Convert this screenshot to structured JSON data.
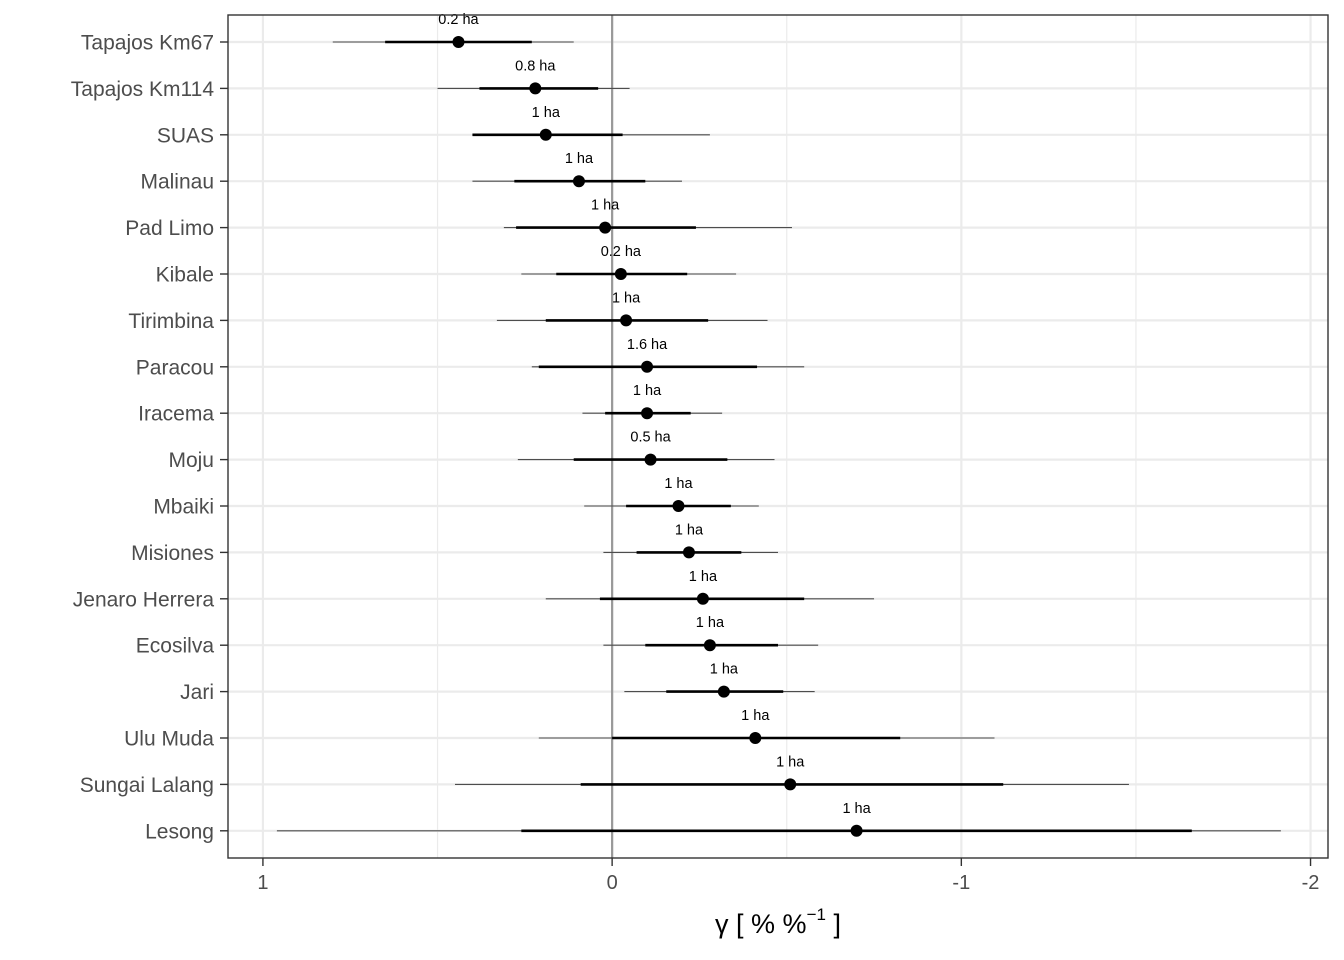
{
  "chart_data": {
    "type": "scatter",
    "subtype": "forest-plot",
    "xlabel": {
      "main": "γ [ % %",
      "sup": "−1",
      "close": " ]"
    },
    "ylabel": "",
    "xlim": [
      1.1,
      -2.05
    ],
    "x_reversed": true,
    "x_ticks": [
      1,
      0,
      -1,
      -2
    ],
    "x_tick_labels": [
      "1",
      "0",
      "-1",
      "-2"
    ],
    "reference_line": 0,
    "grid": true,
    "colors": {
      "grid": "#ebebeb",
      "point": "#000000",
      "ref_line": "#999999",
      "panel_border": "#333333",
      "thin_interval": "#4d4d4d"
    },
    "sites": [
      {
        "name": "Tapajos Km67",
        "estimate": 0.44,
        "inner": [
          0.65,
          0.23
        ],
        "outer": [
          0.8,
          0.11
        ],
        "annotation": "0.2 ha"
      },
      {
        "name": "Tapajos Km114",
        "estimate": 0.22,
        "inner": [
          0.38,
          0.04
        ],
        "outer": [
          0.5,
          -0.05
        ],
        "annotation": "0.8 ha"
      },
      {
        "name": "SUAS",
        "estimate": 0.19,
        "inner": [
          0.4,
          -0.03
        ],
        "outer": [
          0.4,
          -0.28
        ],
        "annotation": "1 ha"
      },
      {
        "name": "Malinau",
        "estimate": 0.095,
        "inner": [
          0.28,
          -0.095
        ],
        "outer": [
          0.4,
          -0.2
        ],
        "annotation": "1 ha"
      },
      {
        "name": "Pad Limo",
        "estimate": 0.02,
        "inner": [
          0.275,
          -0.24
        ],
        "outer": [
          0.31,
          -0.515
        ],
        "annotation": "1 ha"
      },
      {
        "name": "Kibale",
        "estimate": -0.025,
        "inner": [
          0.16,
          -0.215
        ],
        "outer": [
          0.26,
          -0.355
        ],
        "annotation": "0.2 ha"
      },
      {
        "name": "Tirimbina",
        "estimate": -0.04,
        "inner": [
          0.19,
          -0.275
        ],
        "outer": [
          0.33,
          -0.445
        ],
        "annotation": "1 ha"
      },
      {
        "name": "Paracou",
        "estimate": -0.1,
        "inner": [
          0.21,
          -0.415
        ],
        "outer": [
          0.23,
          -0.55
        ],
        "annotation": "1.6 ha"
      },
      {
        "name": "Iracema",
        "estimate": -0.1,
        "inner": [
          0.02,
          -0.225
        ],
        "outer": [
          0.085,
          -0.315
        ],
        "annotation": "1 ha"
      },
      {
        "name": "Moju",
        "estimate": -0.11,
        "inner": [
          0.11,
          -0.33
        ],
        "outer": [
          0.27,
          -0.465
        ],
        "annotation": "0.5 ha"
      },
      {
        "name": "Mbaiki",
        "estimate": -0.19,
        "inner": [
          -0.04,
          -0.34
        ],
        "outer": [
          0.08,
          -0.42
        ],
        "annotation": "1 ha"
      },
      {
        "name": "Misiones",
        "estimate": -0.22,
        "inner": [
          -0.07,
          -0.37
        ],
        "outer": [
          0.025,
          -0.475
        ],
        "annotation": "1 ha"
      },
      {
        "name": "Jenaro Herrera",
        "estimate": -0.26,
        "inner": [
          0.035,
          -0.55
        ],
        "outer": [
          0.19,
          -0.75
        ],
        "annotation": "1 ha"
      },
      {
        "name": "Ecosilva",
        "estimate": -0.28,
        "inner": [
          -0.095,
          -0.475
        ],
        "outer": [
          0.025,
          -0.59
        ],
        "annotation": "1 ha"
      },
      {
        "name": "Jari",
        "estimate": -0.32,
        "inner": [
          -0.155,
          -0.49
        ],
        "outer": [
          -0.035,
          -0.58
        ],
        "annotation": "1 ha"
      },
      {
        "name": "Ulu Muda",
        "estimate": -0.41,
        "inner": [
          0.0,
          -0.825
        ],
        "outer": [
          0.21,
          -1.095
        ],
        "annotation": "1 ha"
      },
      {
        "name": "Sungai Lalang",
        "estimate": -0.51,
        "inner": [
          0.09,
          -1.12
        ],
        "outer": [
          0.45,
          -1.48
        ],
        "annotation": "1 ha"
      },
      {
        "name": "Lesong",
        "estimate": -0.7,
        "inner": [
          0.26,
          -1.66
        ],
        "outer": [
          0.96,
          -1.915
        ],
        "annotation": "1 ha"
      }
    ]
  }
}
